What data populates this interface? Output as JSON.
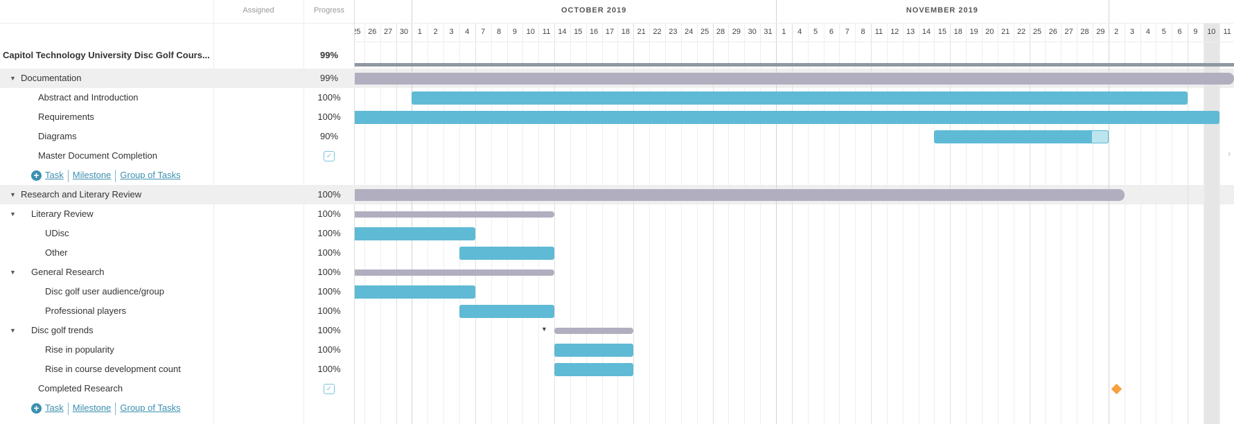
{
  "columns": {
    "assigned": "Assigned",
    "progress": "Progress"
  },
  "timeline": {
    "months": [
      {
        "label": "",
        "from": 0,
        "to": 3
      },
      {
        "label": "OCTOBER 2019",
        "from": 4,
        "to": 26
      },
      {
        "label": "NOVEMBER 2019",
        "from": 27,
        "to": 47
      },
      {
        "label": "",
        "from": 48,
        "to": 55
      }
    ],
    "days": [
      "25",
      "26",
      "27",
      "30",
      "1",
      "2",
      "3",
      "4",
      "7",
      "8",
      "9",
      "10",
      "11",
      "14",
      "15",
      "16",
      "17",
      "18",
      "21",
      "22",
      "23",
      "24",
      "25",
      "28",
      "29",
      "30",
      "31",
      "1",
      "4",
      "5",
      "6",
      "7",
      "8",
      "11",
      "12",
      "13",
      "14",
      "15",
      "18",
      "19",
      "20",
      "21",
      "22",
      "25",
      "26",
      "27",
      "28",
      "29",
      "2",
      "3",
      "4",
      "5",
      "6",
      "9",
      "10",
      "11"
    ],
    "today_column": "Dec 10"
  },
  "colors": {
    "task": "#5fbad5",
    "group": "#b0aebf",
    "project": "#8f97a0",
    "milestone": "#f9a03f",
    "link": "#3b8fb0"
  },
  "rows": [
    {
      "type": "project",
      "name": "Capitol Technology University Disc Golf Cours...",
      "progress": "99%",
      "bar": {
        "kind": "proj",
        "start": "Sep 25",
        "end": "Dec 11"
      }
    },
    {
      "type": "group",
      "level": 0,
      "name": "Documentation",
      "progress": "99%",
      "bar": {
        "kind": "group",
        "start": "Sep 25",
        "end": "Dec 11"
      }
    },
    {
      "type": "task",
      "level": 1,
      "name": "Abstract and Introduction",
      "progress": "100%",
      "bar": {
        "kind": "task",
        "start": "Oct 1",
        "end": "Dec 6",
        "done": 100
      }
    },
    {
      "type": "task",
      "level": 1,
      "name": "Requirements",
      "progress": "100%",
      "bar": {
        "kind": "task",
        "start": "Sep 25",
        "end": "Dec 10",
        "done": 100
      }
    },
    {
      "type": "task",
      "level": 1,
      "name": "Diagrams",
      "progress": "90%",
      "bar": {
        "kind": "task",
        "start": "Nov 15",
        "end": "Nov 29",
        "done": 90
      }
    },
    {
      "type": "milestone",
      "level": 1,
      "name": "Master Document Completion",
      "progress": "checkbox"
    },
    {
      "type": "links",
      "level": 1,
      "links": [
        "Task",
        "Milestone",
        "Group of Tasks"
      ]
    },
    {
      "type": "group",
      "level": 0,
      "name": "Research and Literary Review",
      "progress": "100%",
      "bar": {
        "kind": "group",
        "start": "Sep 25",
        "end": "Dec 2"
      }
    },
    {
      "type": "subgroup",
      "level": 1,
      "name": "Literary Review",
      "progress": "100%",
      "bar": {
        "kind": "sub",
        "start": "Sep 25",
        "end": "Oct 11"
      }
    },
    {
      "type": "task",
      "level": 2,
      "name": "UDisc",
      "progress": "100%",
      "bar": {
        "kind": "task",
        "start": "Sep 25",
        "end": "Oct 4",
        "done": 100
      }
    },
    {
      "type": "task",
      "level": 2,
      "name": "Other",
      "progress": "100%",
      "bar": {
        "kind": "task",
        "start": "Oct 4",
        "end": "Oct 11",
        "done": 100
      }
    },
    {
      "type": "subgroup",
      "level": 1,
      "name": "General Research",
      "progress": "100%",
      "bar": {
        "kind": "sub",
        "start": "Sep 25",
        "end": "Oct 11"
      }
    },
    {
      "type": "task",
      "level": 2,
      "name": "Disc golf user audience/group",
      "progress": "100%",
      "bar": {
        "kind": "task",
        "start": "Sep 25",
        "end": "Oct 4",
        "done": 100
      }
    },
    {
      "type": "task",
      "level": 2,
      "name": "Professional players",
      "progress": "100%",
      "bar": {
        "kind": "task",
        "start": "Oct 4",
        "end": "Oct 11",
        "done": 100
      }
    },
    {
      "type": "subgroup",
      "level": 1,
      "name": "Disc golf trends",
      "progress": "100%",
      "bar": {
        "kind": "sub",
        "start": "Oct 14",
        "end": "Oct 18",
        "marker": true
      }
    },
    {
      "type": "task",
      "level": 2,
      "name": "Rise in popularity",
      "progress": "100%",
      "bar": {
        "kind": "task",
        "start": "Oct 14",
        "end": "Oct 18",
        "done": 100
      }
    },
    {
      "type": "task",
      "level": 2,
      "name": "Rise in course development count",
      "progress": "100%",
      "bar": {
        "kind": "task",
        "start": "Oct 14",
        "end": "Oct 18",
        "done": 100
      }
    },
    {
      "type": "milestone",
      "level": 1,
      "name": "Completed Research",
      "progress": "checkbox",
      "bar": {
        "kind": "milestone",
        "start": "Dec 2",
        "end": "Dec 2"
      }
    },
    {
      "type": "links",
      "level": 1,
      "links": [
        "Task",
        "Milestone",
        "Group of Tasks"
      ]
    }
  ]
}
